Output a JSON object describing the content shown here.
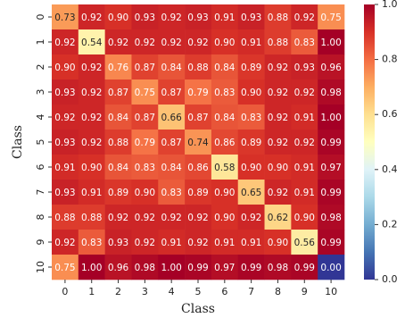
{
  "chart_data": {
    "type": "heatmap",
    "x_label": "Class",
    "y_label": "Class",
    "categories": [
      "0",
      "1",
      "2",
      "3",
      "4",
      "5",
      "6",
      "7",
      "8",
      "9",
      "10"
    ],
    "rows": [
      "0",
      "1",
      "2",
      "3",
      "4",
      "5",
      "6",
      "7",
      "8",
      "9",
      "10"
    ],
    "colormap": "RdYlBu_r",
    "values": [
      [
        0.73,
        0.92,
        0.9,
        0.93,
        0.92,
        0.93,
        0.91,
        0.93,
        0.88,
        0.92,
        0.75
      ],
      [
        0.92,
        0.54,
        0.92,
        0.92,
        0.92,
        0.92,
        0.9,
        0.91,
        0.88,
        0.83,
        1.0
      ],
      [
        0.9,
        0.92,
        0.76,
        0.87,
        0.84,
        0.88,
        0.84,
        0.89,
        0.92,
        0.93,
        0.96
      ],
      [
        0.93,
        0.92,
        0.87,
        0.75,
        0.87,
        0.79,
        0.83,
        0.9,
        0.92,
        0.92,
        0.98
      ],
      [
        0.92,
        0.92,
        0.84,
        0.87,
        0.66,
        0.87,
        0.84,
        0.83,
        0.92,
        0.91,
        1.0
      ],
      [
        0.93,
        0.92,
        0.88,
        0.79,
        0.87,
        0.74,
        0.86,
        0.89,
        0.92,
        0.92,
        0.99
      ],
      [
        0.91,
        0.9,
        0.84,
        0.83,
        0.84,
        0.86,
        0.58,
        0.9,
        0.9,
        0.91,
        0.97
      ],
      [
        0.93,
        0.91,
        0.89,
        0.9,
        0.83,
        0.89,
        0.9,
        0.65,
        0.92,
        0.91,
        0.99
      ],
      [
        0.88,
        0.88,
        0.92,
        0.92,
        0.92,
        0.92,
        0.9,
        0.92,
        0.62,
        0.9,
        0.98
      ],
      [
        0.92,
        0.83,
        0.93,
        0.92,
        0.91,
        0.92,
        0.91,
        0.91,
        0.9,
        0.56,
        0.99
      ],
      [
        0.75,
        1.0,
        0.96,
        0.98,
        1.0,
        0.99,
        0.97,
        0.99,
        0.98,
        0.99,
        0.0
      ]
    ],
    "value_labels": [
      [
        "0.73",
        "0.92",
        "0.90",
        "0.93",
        "0.92",
        "0.93",
        "0.91",
        "0.93",
        "0.88",
        "0.92",
        "0.75"
      ],
      [
        "0.92",
        "0.54",
        "0.92",
        "0.92",
        "0.92",
        "0.92",
        "0.90",
        "0.91",
        "0.88",
        "0.83",
        "1.00"
      ],
      [
        "0.90",
        "0.92",
        "0.76",
        "0.87",
        "0.84",
        "0.88",
        "0.84",
        "0.89",
        "0.92",
        "0.93",
        "0.96"
      ],
      [
        "0.93",
        "0.92",
        "0.87",
        "0.75",
        "0.87",
        "0.79",
        "0.83",
        "0.90",
        "0.92",
        "0.92",
        "0.98"
      ],
      [
        "0.92",
        "0.92",
        "0.84",
        "0.87",
        "0.66",
        "0.87",
        "0.84",
        "0.83",
        "0.92",
        "0.91",
        "1.00"
      ],
      [
        "0.93",
        "0.92",
        "0.88",
        "0.79",
        "0.87",
        "0.74",
        "0.86",
        "0.89",
        "0.92",
        "0.92",
        "0.99"
      ],
      [
        "0.91",
        "0.90",
        "0.84",
        "0.83",
        "0.84",
        "0.86",
        "0.58",
        "0.90",
        "0.90",
        "0.91",
        "0.97"
      ],
      [
        "0.93",
        "0.91",
        "0.89",
        "0.90",
        "0.83",
        "0.89",
        "0.90",
        "0.65",
        "0.92",
        "0.91",
        "0.99"
      ],
      [
        "0.88",
        "0.88",
        "0.92",
        "0.92",
        "0.92",
        "0.92",
        "0.90",
        "0.92",
        "0.62",
        "0.90",
        "0.98"
      ],
      [
        "0.92",
        "0.83",
        "0.93",
        "0.92",
        "0.91",
        "0.92",
        "0.91",
        "0.91",
        "0.90",
        "0.56",
        "0.99"
      ],
      [
        "0.75",
        "1.00",
        "0.96",
        "0.98",
        "1.00",
        "0.99",
        "0.97",
        "0.99",
        "0.98",
        "0.99",
        "0.00"
      ]
    ],
    "clim": [
      0,
      1
    ],
    "cticks": [
      {
        "value": 0,
        "label": "0.0"
      },
      0.2,
      0.4,
      0.6,
      0.8,
      {
        "value": 1,
        "label": "1.0"
      }
    ]
  }
}
